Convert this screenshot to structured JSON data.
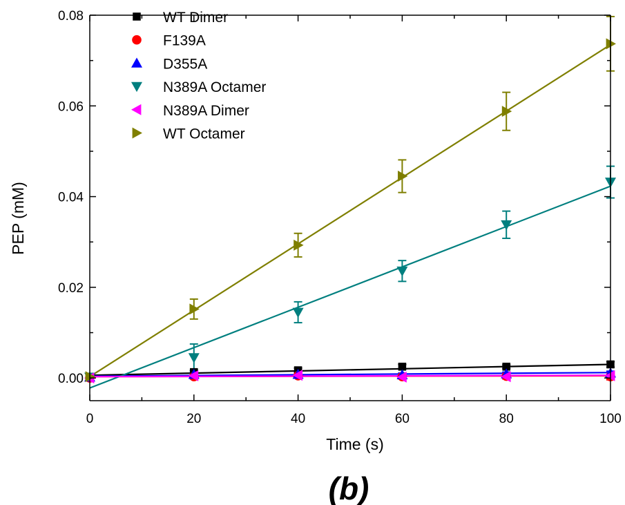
{
  "chart_data": {
    "type": "scatter",
    "xlabel": "Time (s)",
    "ylabel": "PEP (mM)",
    "panel_label_open": "(",
    "panel_label_letter": "b",
    "panel_label_close": ")",
    "xlim": [
      0,
      100
    ],
    "ylim": [
      -0.005,
      0.08
    ],
    "x_ticks": [
      0,
      20,
      40,
      60,
      80,
      100
    ],
    "x_tick_labels": [
      "0",
      "20",
      "40",
      "60",
      "80",
      "100"
    ],
    "y_ticks": [
      0,
      0.02,
      0.04,
      0.06,
      0.08
    ],
    "y_tick_labels": [
      "0.00",
      "0.02",
      "0.04",
      "0.06",
      "0.08"
    ],
    "grid": false,
    "legend_position": "top-left",
    "x": [
      0,
      20,
      40,
      60,
      80,
      100
    ],
    "series": [
      {
        "name": "WT Dimer",
        "color": "#000000",
        "marker": "square",
        "values": [
          0.0003,
          0.0013,
          0.0017,
          0.0025,
          0.0025,
          0.003
        ],
        "errors": [
          0.0003,
          0.0004,
          0.0005,
          0.0005,
          0.0004,
          0.0006
        ],
        "fit": [
          0.0006,
          0.003
        ]
      },
      {
        "name": "F139A",
        "color": "#ff0000",
        "marker": "circle",
        "values": [
          0.0,
          0.0003,
          0.0005,
          0.0003,
          0.0004,
          0.0003
        ],
        "errors": [
          0.0003,
          0.0005,
          0.0005,
          0.0005,
          0.0006,
          0.0007
        ],
        "fit": [
          0.0003,
          0.0005
        ]
      },
      {
        "name": "D355A",
        "color": "#0000ff",
        "marker": "triangle-up",
        "values": [
          0.0002,
          0.0008,
          0.0008,
          0.0007,
          0.0009,
          0.0011
        ],
        "errors": [
          0.0003,
          0.0004,
          0.0004,
          0.0004,
          0.0004,
          0.0004
        ],
        "fit": [
          0.0004,
          0.0012
        ]
      },
      {
        "name": "N389A Octamer",
        "color": "#007f7f",
        "marker": "triangle-down",
        "values": [
          0.0002,
          0.0045,
          0.0145,
          0.0236,
          0.0338,
          0.0432
        ],
        "errors": [
          0.0003,
          0.003,
          0.0023,
          0.0023,
          0.003,
          0.0035
        ],
        "fit": [
          -0.0022,
          0.0423
        ]
      },
      {
        "name": "N389A Dimer",
        "color": "#ff00ff",
        "marker": "triangle-left",
        "values": [
          0.0,
          0.0005,
          0.0006,
          0.0002,
          0.0003,
          0.0005
        ],
        "errors": [
          0.0003,
          0.0004,
          0.0004,
          0.0004,
          0.0004,
          0.0004
        ],
        "fit": [
          0.0003,
          0.0006
        ]
      },
      {
        "name": "WT Octamer",
        "color": "#7f7f00",
        "marker": "triangle-right",
        "values": [
          0.0003,
          0.0152,
          0.0293,
          0.0445,
          0.0588,
          0.0737
        ],
        "errors": [
          0.0003,
          0.0022,
          0.0026,
          0.0036,
          0.0042,
          0.006
        ],
        "fit": [
          0.0003,
          0.0735
        ]
      }
    ]
  }
}
